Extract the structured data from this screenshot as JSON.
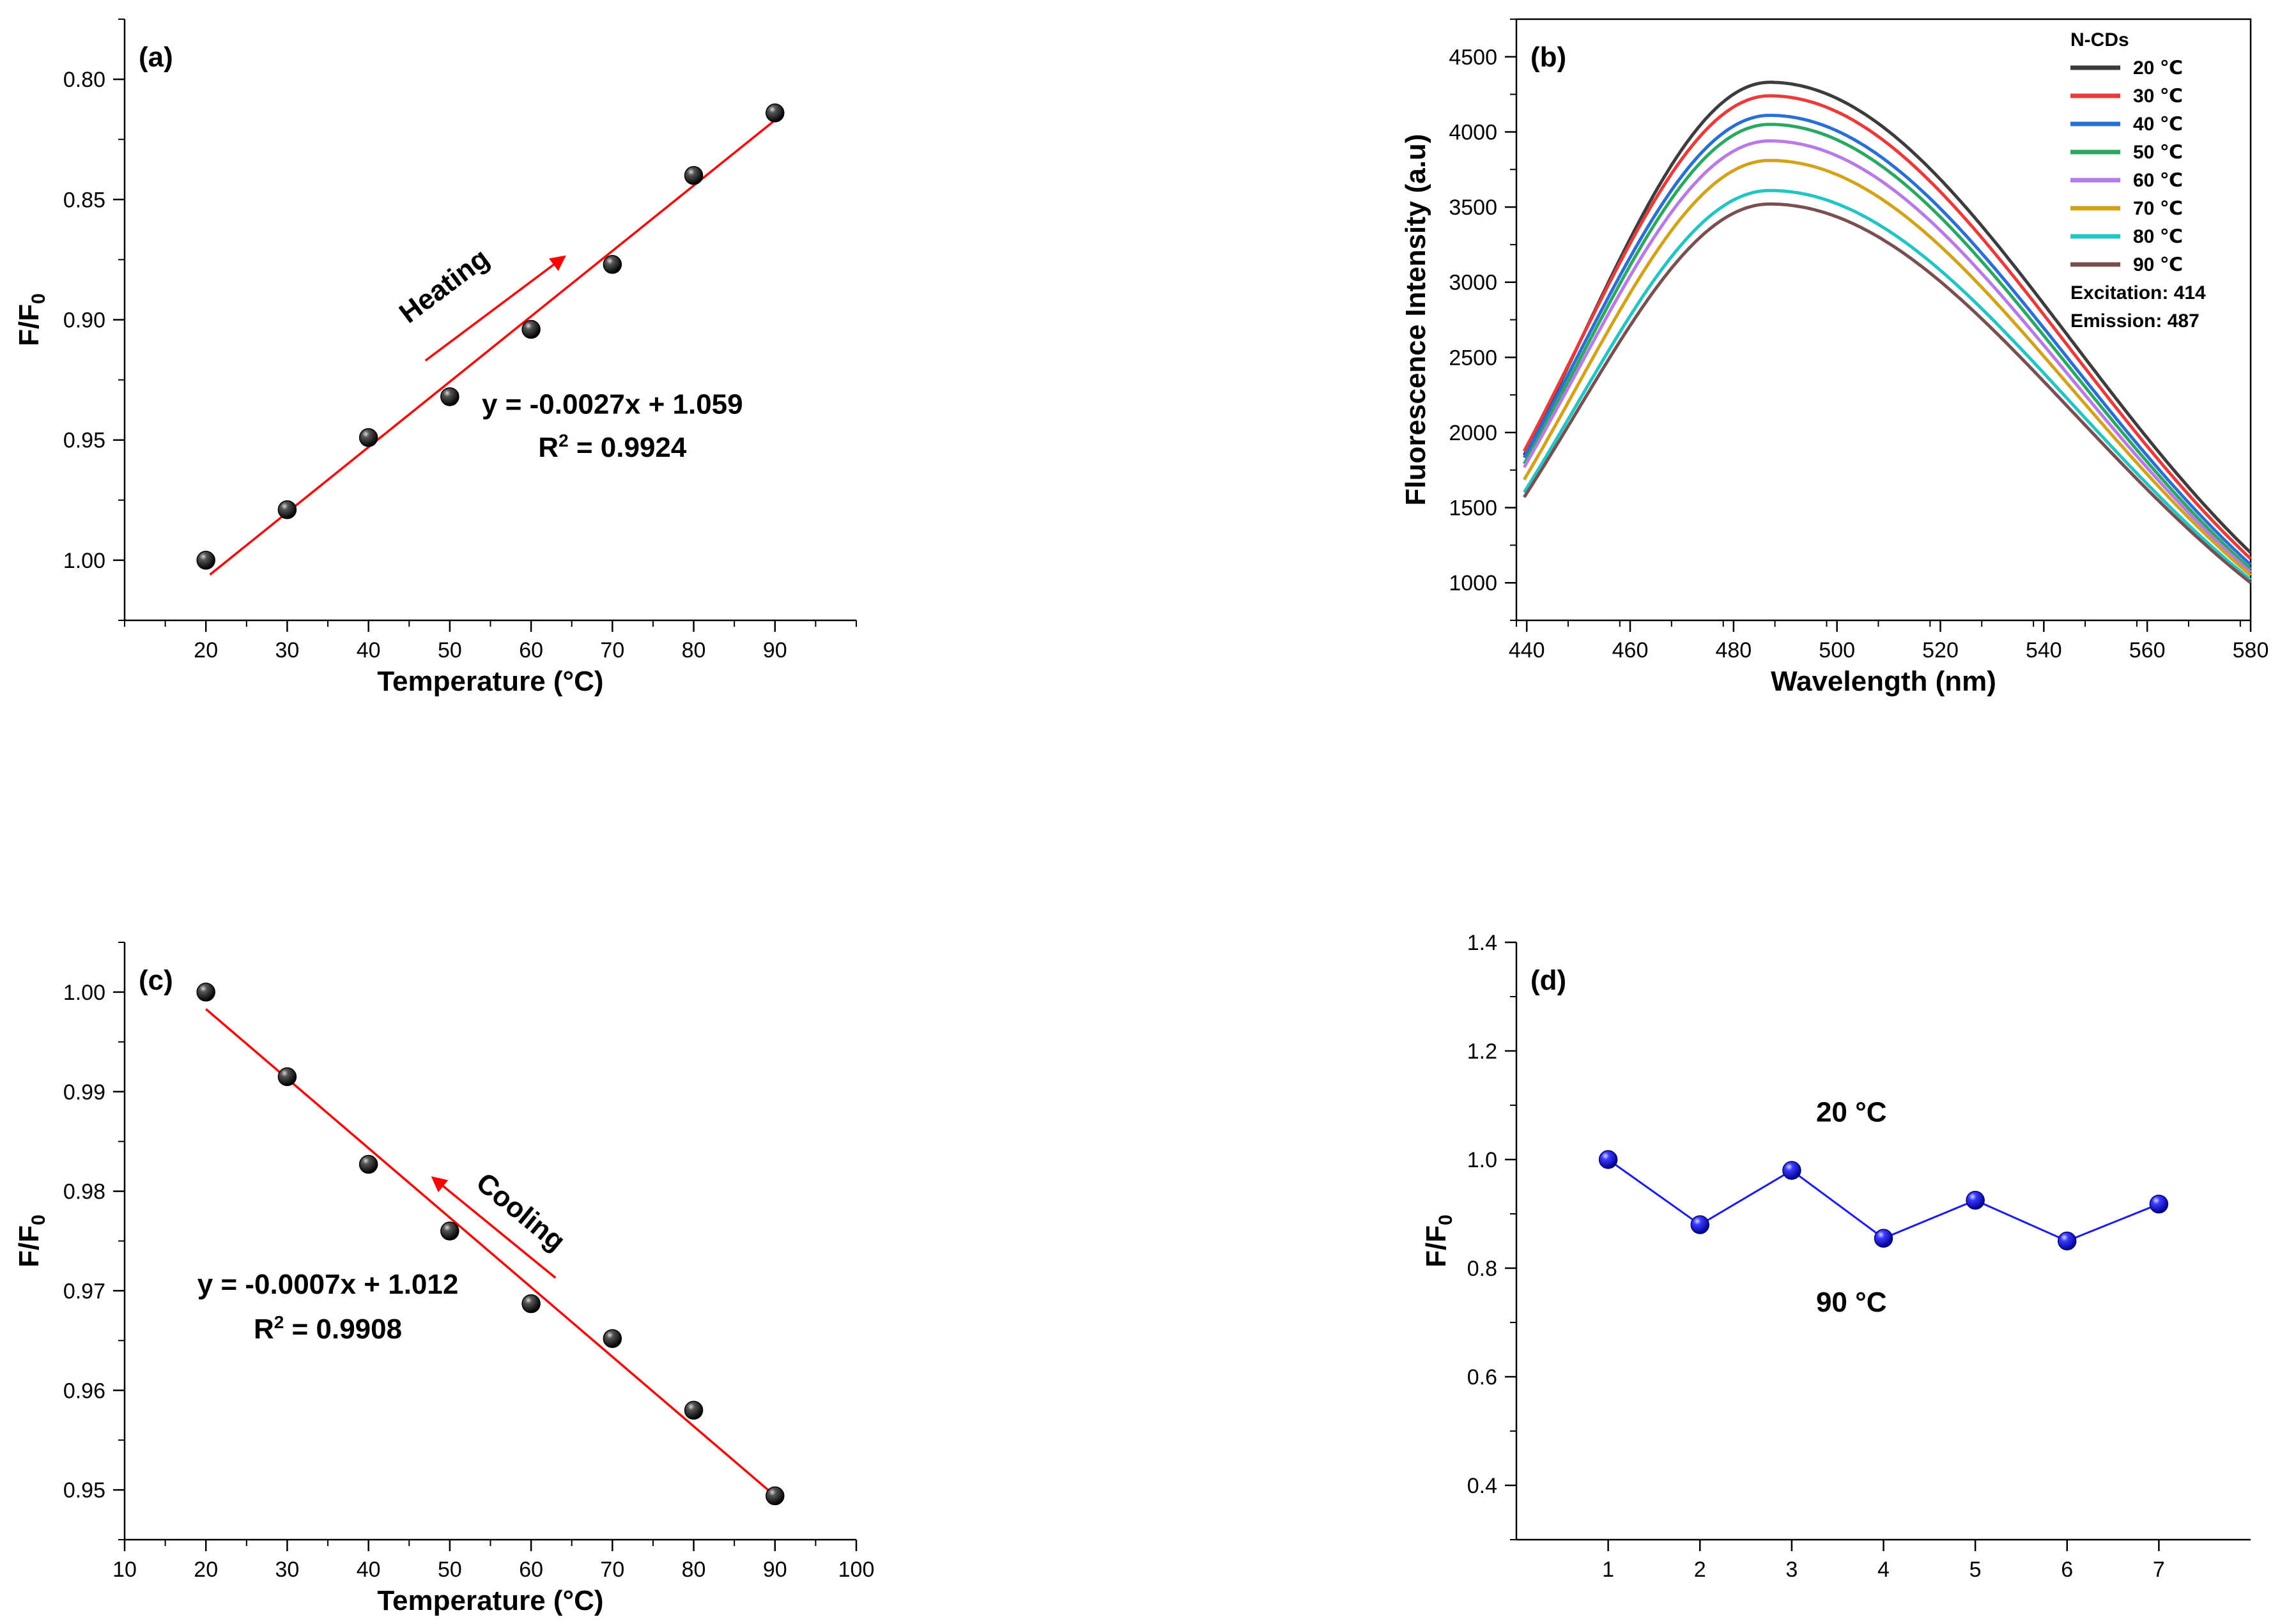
{
  "colors": {
    "axis": "#000000",
    "fit": "#ff0000",
    "arrow": "#ff0000",
    "marker": "#000000",
    "panel_d_series": "#1a1aff"
  },
  "chart_data": [
    {
      "id": "a",
      "panel_label": "(a)",
      "type": "scatter",
      "title": "",
      "xlabel": "Temperature (°C)",
      "ylabel_main": "F/F",
      "ylabel_sub": "0",
      "xlim": [
        10,
        100
      ],
      "ylim": [
        1.025,
        0.775
      ],
      "y_inverted": true,
      "xticks": [
        20,
        30,
        40,
        50,
        60,
        70,
        80,
        90
      ],
      "xtick_labels": [
        "20",
        "30",
        "40",
        "50",
        "60",
        "70",
        "80",
        "90"
      ],
      "yticks": [
        0.8,
        0.85,
        0.9,
        0.95,
        1.0
      ],
      "ytick_labels": [
        "0.80",
        "0.85",
        "0.90",
        "0.95",
        "1.00"
      ],
      "x": [
        20,
        30,
        40,
        50,
        60,
        70,
        80,
        90
      ],
      "y": [
        1.0,
        0.979,
        0.949,
        0.932,
        0.904,
        0.877,
        0.84,
        0.814
      ],
      "fit": {
        "x": [
          20.5,
          90
        ],
        "y": [
          1.006,
          0.817
        ]
      },
      "arrow": {
        "from": [
          47,
          0.917
        ],
        "to": [
          64,
          0.874
        ],
        "label": "Heating",
        "label_pos": [
          50,
          0.889
        ]
      },
      "equation": "y = -0.0027x + 1.059",
      "r2_prefix": "R",
      "r2_exp": "2",
      "r2_value": " = 0.9924",
      "equation_pos": [
        70,
        0.939
      ],
      "r2_pos": [
        70,
        0.957
      ]
    },
    {
      "id": "b",
      "panel_label": "(b)",
      "type": "line",
      "title": "",
      "xlabel": "Wavelength (nm)",
      "ylabel": "Fluorescence Intensity (a.u)",
      "xlim": [
        438,
        580
      ],
      "ylim": [
        750,
        4750
      ],
      "xticks": [
        440,
        460,
        480,
        500,
        520,
        540,
        560,
        580
      ],
      "xtick_labels": [
        "440",
        "460",
        "480",
        "500",
        "520",
        "540",
        "560",
        "580"
      ],
      "yticks": [
        1000,
        1500,
        2000,
        2500,
        3000,
        3500,
        4000,
        4500
      ],
      "ytick_labels": [
        "1000",
        "1500",
        "2000",
        "2500",
        "3000",
        "3500",
        "4000",
        "4500"
      ],
      "peak_wavelength": 487,
      "legend_title": "N-CDs",
      "legend_notes": [
        "Excitation: 414",
        "Emission: 487"
      ],
      "series": [
        {
          "name": "20 ℃",
          "color": "#3c3c3c",
          "peak": 4330,
          "start": 1750,
          "end": 1200
        },
        {
          "name": "30 ℃",
          "color": "#ec3a3a",
          "peak": 4240,
          "start": 1780,
          "end": 1160
        },
        {
          "name": "40 ℃",
          "color": "#2a6fd6",
          "peak": 4110,
          "start": 1740,
          "end": 1120
        },
        {
          "name": "50 ℃",
          "color": "#2aa862",
          "peak": 4050,
          "start": 1700,
          "end": 1090
        },
        {
          "name": "60 ℃",
          "color": "#b87ae6",
          "peak": 3940,
          "start": 1680,
          "end": 1070
        },
        {
          "name": "70 ℃",
          "color": "#d4a216",
          "peak": 3810,
          "start": 1600,
          "end": 1050
        },
        {
          "name": "80 ℃",
          "color": "#22c4c4",
          "peak": 3610,
          "start": 1520,
          "end": 1020
        },
        {
          "name": "90 ℃",
          "color": "#7a4f4f",
          "peak": 3520,
          "start": 1490,
          "end": 1000
        }
      ]
    },
    {
      "id": "c",
      "panel_label": "(c)",
      "type": "scatter",
      "title": "",
      "xlabel": "Temperature (°C)",
      "ylabel_main": "F/F",
      "ylabel_sub": "0",
      "xlim": [
        10,
        100
      ],
      "ylim": [
        0.945,
        1.005
      ],
      "xticks": [
        10,
        20,
        30,
        40,
        50,
        60,
        70,
        80,
        90,
        100
      ],
      "xtick_labels": [
        "10",
        "20",
        "30",
        "40",
        "50",
        "60",
        "70",
        "80",
        "90",
        "100"
      ],
      "yticks": [
        0.95,
        0.96,
        0.97,
        0.98,
        0.99,
        1.0
      ],
      "ytick_labels": [
        "0.95",
        "0.96",
        "0.97",
        "0.98",
        "0.99",
        "1.00"
      ],
      "x": [
        20,
        30,
        40,
        50,
        60,
        70,
        80,
        90
      ],
      "y": [
        1.0,
        0.9915,
        0.9827,
        0.976,
        0.9687,
        0.9652,
        0.958,
        0.9494
      ],
      "fit": {
        "x": [
          20,
          90
        ],
        "y": [
          0.9983,
          0.9494
        ]
      },
      "arrow": {
        "from": [
          63,
          0.9713
        ],
        "to": [
          48,
          0.9813
        ],
        "label": "Cooling",
        "label_pos": [
          58,
          0.9772
        ]
      },
      "equation": "y = -0.0007x + 1.012",
      "r2_prefix": "R",
      "r2_exp": "2",
      "r2_value": " = 0.9908",
      "equation_pos": [
        35,
        0.9697
      ],
      "r2_pos": [
        35,
        0.9652
      ]
    },
    {
      "id": "d",
      "panel_label": "(d)",
      "type": "line",
      "title": "",
      "xlabel": "",
      "ylabel_main": "F/F",
      "ylabel_sub": "0",
      "xlim": [
        0,
        8
      ],
      "ylim": [
        0.3,
        1.4
      ],
      "xticks": [
        1,
        2,
        3,
        4,
        5,
        6,
        7
      ],
      "xtick_labels": [
        "1",
        "2",
        "3",
        "4",
        "5",
        "6",
        "7"
      ],
      "yticks": [
        0.4,
        0.6,
        0.8,
        1.0,
        1.2,
        1.4
      ],
      "ytick_labels": [
        "0.4",
        "0.6",
        "0.8",
        "1.0",
        "1.2",
        "1.4"
      ],
      "x": [
        1,
        2,
        3,
        4,
        5,
        6,
        7
      ],
      "y": [
        1.0,
        0.88,
        0.98,
        0.855,
        0.925,
        0.85,
        0.918
      ],
      "annotations": [
        {
          "text": "20 °C",
          "x": 3.65,
          "y": 1.07
        },
        {
          "text": "90 °C",
          "x": 3.65,
          "y": 0.72
        }
      ]
    }
  ]
}
